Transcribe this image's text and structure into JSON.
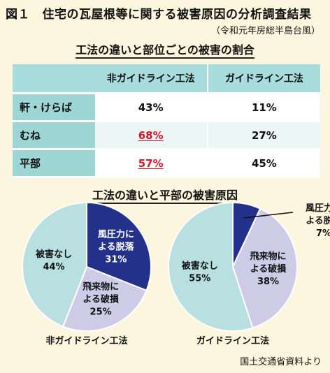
{
  "figure": {
    "title": "図１　住宅の瓦屋根等に関する被害原因の分析調査結果",
    "subtitle": "（令和元年房総半島台風）",
    "source": "国土交通省資料より"
  },
  "colors": {
    "background": "#fdf6de",
    "header_teal": "#a9dcdc",
    "highlight_red": "#d3162a",
    "wind": "#24318a",
    "debris": "#cdcbe6",
    "unknown": "#b8e0e0"
  },
  "chart_data": [
    {
      "type": "table",
      "title": "工法の違いと部位ごとの被害の割合",
      "columns": [
        "非ガイドライン工法",
        "ガイドライン工法"
      ],
      "rows": [
        {
          "label": "軒・けらば",
          "values": [
            "43%",
            "11%"
          ],
          "highlight": [
            false,
            false
          ]
        },
        {
          "label": "むね",
          "values": [
            "68%",
            "27%"
          ],
          "highlight": [
            true,
            false
          ]
        },
        {
          "label": "平部",
          "values": [
            "57%",
            "45%"
          ],
          "highlight": [
            true,
            false
          ]
        }
      ]
    },
    {
      "type": "pie",
      "title": "工法の違いと平部の被害原因",
      "pies": [
        {
          "label": "非ガイドライン工法",
          "slices": [
            {
              "label1": "風圧力に",
              "label2": "よる脱落",
              "value": 31,
              "pct": "31%",
              "color": "#24318a",
              "text_color": "#ffffff"
            },
            {
              "label1": "飛来物に",
              "label2": "よる破損",
              "value": 25,
              "pct": "25%",
              "color": "#cdcbe6",
              "text_color": "#111111"
            },
            {
              "label1": "被害なし",
              "label2": "",
              "value": 44,
              "pct": "44%",
              "color": "#b8e0e0",
              "text_color": "#111111"
            }
          ]
        },
        {
          "label": "ガイドライン工法",
          "slices": [
            {
              "label1": "風圧力に",
              "label2": "よる脱落",
              "value": 7,
              "pct": "7%",
              "color": "#24318a",
              "text_color": "#111111"
            },
            {
              "label1": "飛来物に",
              "label2": "よる破損",
              "value": 38,
              "pct": "38%",
              "color": "#cdcbe6",
              "text_color": "#111111"
            },
            {
              "label1": "被害なし",
              "label2": "",
              "value": 55,
              "pct": "55%",
              "color": "#b8e0e0",
              "text_color": "#111111"
            }
          ]
        }
      ]
    }
  ]
}
